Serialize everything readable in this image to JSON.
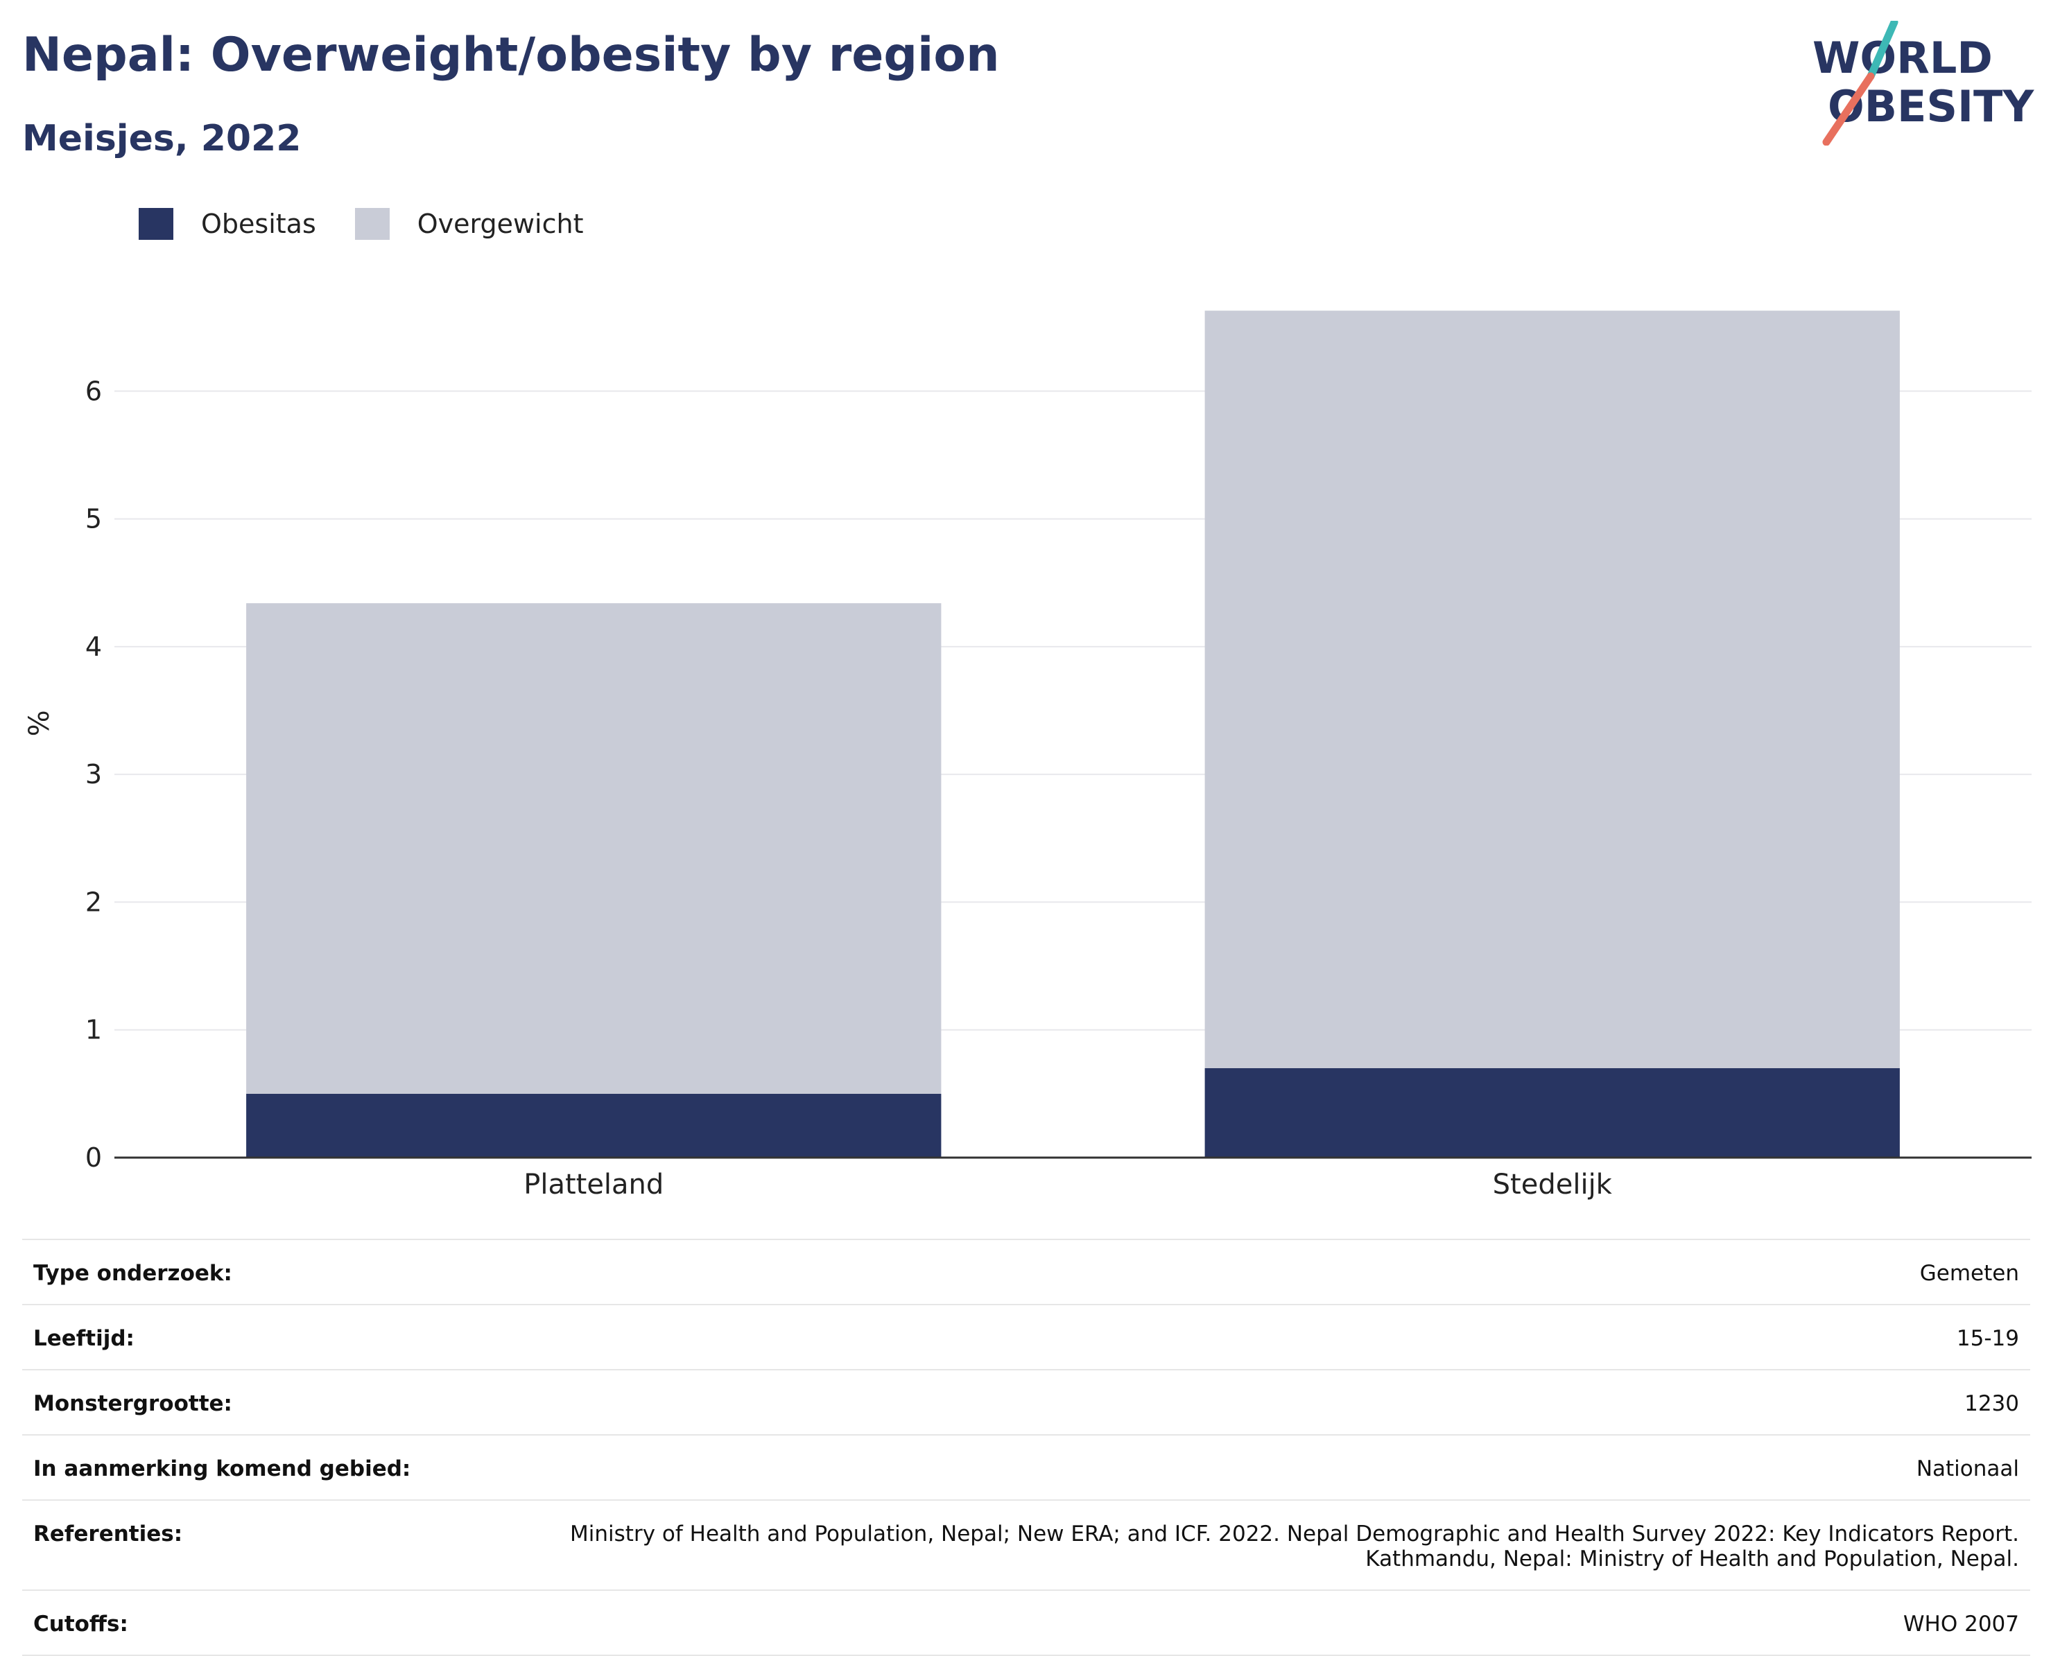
{
  "header": {
    "title": "Nepal: Overweight/obesity by region",
    "subtitle": "Meisjes, 2022"
  },
  "logo": {
    "line1": "WORLD",
    "line2": "OBESITY",
    "colors": {
      "text": "#283562",
      "teal": "#3db8b5",
      "coral": "#e8705e"
    }
  },
  "legend": [
    {
      "label": "Obesitas",
      "color": "#283562"
    },
    {
      "label": "Overgewicht",
      "color": "#c9ccd7"
    }
  ],
  "chart_data": {
    "type": "bar",
    "stacked": true,
    "categories": [
      "Platteland",
      "Stedelijk"
    ],
    "series": [
      {
        "name": "Obesitas",
        "color": "#283562",
        "values": [
          0.5,
          0.7
        ]
      },
      {
        "name": "Overgewicht",
        "color": "#c9ccd7",
        "values": [
          3.84,
          5.93
        ]
      }
    ],
    "totals": [
      4.34,
      6.63
    ],
    "ylabel": "%",
    "yticks": [
      0,
      1,
      2,
      3,
      4,
      5,
      6
    ],
    "ylim": [
      0,
      7
    ],
    "grid": true,
    "legend_position": "top-left"
  },
  "info_table": [
    {
      "key": "Type onderzoek:",
      "value": "Gemeten"
    },
    {
      "key": "Leeftijd:",
      "value": "15-19"
    },
    {
      "key": "Monstergrootte:",
      "value": "1230"
    },
    {
      "key": "In aanmerking komend gebied:",
      "value": "Nationaal"
    },
    {
      "key": "Referenties:",
      "value": "Ministry of Health and Population, Nepal; New ERA; and ICF. 2022. Nepal Demographic and Health Survey 2022: Key Indicators Report.\nKathmandu, Nepal: Ministry of Health and Population, Nepal."
    },
    {
      "key": "Cutoffs:",
      "value": "WHO 2007"
    }
  ]
}
